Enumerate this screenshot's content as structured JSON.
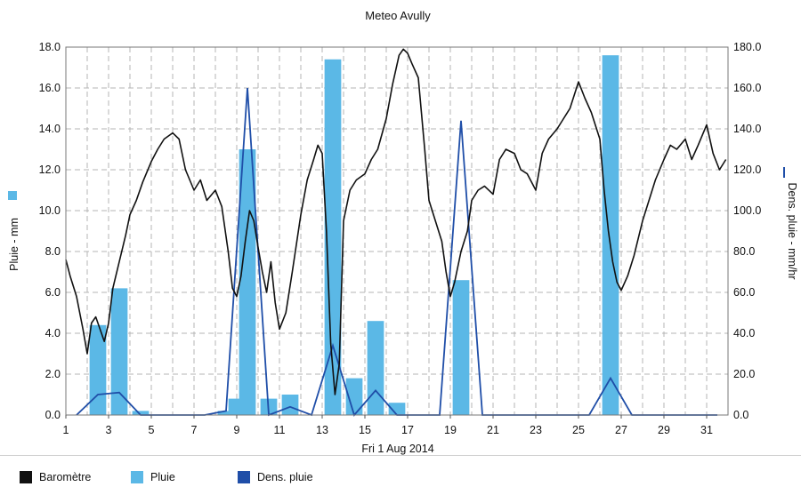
{
  "chart_data": {
    "type": "bar+line",
    "title": "Meteo  Avully",
    "xlabel": "Fri 1 Aug 2014",
    "ylabel_left": "Pluie - mm",
    "ylabel_right": "Dens. pluie - mm/hr",
    "xlim": [
      1,
      32
    ],
    "ylim_left": [
      0,
      18
    ],
    "ylim_right": [
      0,
      180
    ],
    "x_ticks": [
      "1",
      "3",
      "5",
      "7",
      "9",
      "11",
      "13",
      "15",
      "17",
      "19",
      "21",
      "23",
      "25",
      "27",
      "29",
      "31"
    ],
    "y_left_ticks": [
      "0.0",
      "2.0",
      "4.0",
      "6.0",
      "8.0",
      "10.0",
      "12.0",
      "14.0",
      "16.0",
      "18.0"
    ],
    "y_right_ticks": [
      "0.0",
      "20.0",
      "40.0",
      "60.0",
      "80.0",
      "100.0",
      "120.0",
      "140.0",
      "160.0",
      "180.0"
    ],
    "grid": true,
    "legend_position": "bottom",
    "series": [
      {
        "name": "Baromètre",
        "type": "line",
        "axis": "left",
        "color": "#111111",
        "x": [
          1.0,
          1.2,
          1.5,
          1.8,
          2.0,
          2.2,
          2.4,
          2.6,
          2.8,
          3.0,
          3.2,
          3.5,
          3.8,
          4.0,
          4.3,
          4.6,
          5.0,
          5.3,
          5.6,
          6.0,
          6.3,
          6.6,
          7.0,
          7.3,
          7.6,
          8.0,
          8.3,
          8.6,
          8.8,
          9.0,
          9.2,
          9.4,
          9.6,
          9.8,
          10.0,
          10.2,
          10.4,
          10.6,
          10.8,
          11.0,
          11.3,
          11.6,
          12.0,
          12.3,
          12.6,
          12.8,
          13.0,
          13.2,
          13.4,
          13.6,
          13.8,
          14.0,
          14.3,
          14.6,
          15.0,
          15.3,
          15.6,
          16.0,
          16.3,
          16.6,
          16.8,
          17.0,
          17.2,
          17.5,
          17.8,
          18.0,
          18.3,
          18.6,
          18.8,
          19.0,
          19.2,
          19.5,
          19.8,
          20.0,
          20.3,
          20.6,
          21.0,
          21.3,
          21.6,
          22.0,
          22.3,
          22.6,
          23.0,
          23.3,
          23.6,
          24.0,
          24.3,
          24.6,
          25.0,
          25.3,
          25.6,
          26.0,
          26.2,
          26.4,
          26.6,
          26.8,
          27.0,
          27.3,
          27.6,
          28.0,
          28.3,
          28.6,
          29.0,
          29.3,
          29.6,
          30.0,
          30.3,
          30.6,
          31.0,
          31.3,
          31.6,
          31.9
        ],
        "values": [
          7.6,
          6.8,
          5.8,
          4.2,
          3.0,
          4.5,
          4.8,
          4.2,
          3.6,
          4.5,
          6.2,
          7.5,
          8.8,
          9.8,
          10.5,
          11.4,
          12.4,
          13.0,
          13.5,
          13.8,
          13.5,
          12.0,
          11.0,
          11.5,
          10.5,
          11.0,
          10.2,
          8.0,
          6.2,
          5.8,
          6.8,
          8.5,
          10.0,
          9.5,
          8.2,
          7.0,
          6.0,
          7.5,
          5.5,
          4.2,
          5.0,
          7.0,
          9.8,
          11.5,
          12.5,
          13.2,
          12.8,
          9.0,
          3.5,
          1.0,
          2.5,
          9.5,
          11.0,
          11.5,
          11.8,
          12.5,
          13.0,
          14.5,
          16.2,
          17.6,
          17.9,
          17.7,
          17.2,
          16.5,
          13.0,
          10.5,
          9.5,
          8.5,
          7.0,
          5.8,
          6.5,
          8.0,
          9.0,
          10.5,
          11.0,
          11.2,
          10.8,
          12.5,
          13.0,
          12.8,
          12.0,
          11.8,
          11.0,
          12.8,
          13.5,
          14.0,
          14.5,
          15.0,
          16.3,
          15.5,
          14.8,
          13.5,
          11.0,
          9.0,
          7.5,
          6.5,
          6.1,
          6.8,
          7.8,
          9.5,
          10.5,
          11.5,
          12.5,
          13.2,
          13.0,
          13.5,
          12.5,
          13.2,
          14.2,
          12.8,
          12.0,
          12.5
        ]
      },
      {
        "name": "Pluie",
        "type": "bar",
        "axis": "left",
        "color": "#5bb8e6",
        "x": [
          2.5,
          3.5,
          4.5,
          8.5,
          9.0,
          9.5,
          10.5,
          11.5,
          13.5,
          14.5,
          15.5,
          16.5,
          19.5,
          26.5
        ],
        "values": [
          4.4,
          6.2,
          0.2,
          0.2,
          0.8,
          13.0,
          0.8,
          1.0,
          17.4,
          1.8,
          4.6,
          0.6,
          6.6,
          17.6
        ]
      },
      {
        "name": "Dens. pluie",
        "type": "line",
        "axis": "right",
        "color": "#1f4ea8",
        "x": [
          1.5,
          2.5,
          3.5,
          4.5,
          5.5,
          6.5,
          7.5,
          8.5,
          9.5,
          10.5,
          11.5,
          12.5,
          13.5,
          14.5,
          15.5,
          16.5,
          17.5,
          18.5,
          19.5,
          20.5,
          21.5,
          22.5,
          23.5,
          24.5,
          25.5,
          26.5,
          27.5,
          28.5,
          29.5,
          30.5,
          31.5
        ],
        "values": [
          0,
          10,
          11,
          0,
          0,
          0,
          0,
          2,
          160,
          0,
          4,
          0,
          34,
          0,
          12,
          0,
          0,
          0,
          144,
          0,
          0,
          0,
          0,
          0,
          0,
          18,
          0,
          0,
          0,
          0,
          0
        ]
      }
    ]
  },
  "legend": {
    "items": [
      {
        "label": "Baromètre",
        "color": "#111111"
      },
      {
        "label": "Pluie",
        "color": "#5bb8e6"
      },
      {
        "label": "Dens. pluie",
        "color": "#1f4ea8"
      }
    ]
  }
}
